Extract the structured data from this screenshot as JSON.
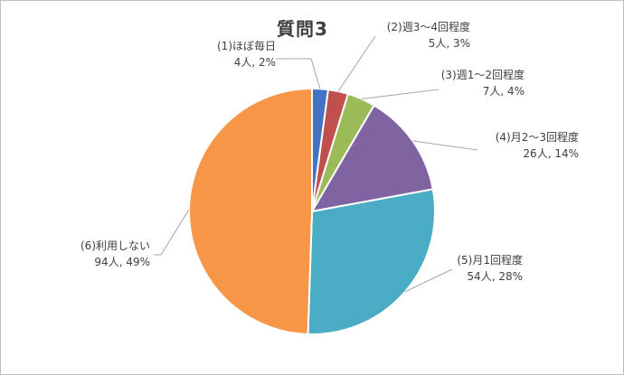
{
  "chart_data": {
    "type": "pie",
    "title": "質問3",
    "slices": [
      {
        "label": "(1)ほぼ毎日",
        "count": 4,
        "count_text": "4人",
        "percent": 2,
        "percent_text": "2%",
        "color": "#4472c4"
      },
      {
        "label": "(2)週3～4回程度",
        "count": 5,
        "count_text": "5人",
        "percent": 3,
        "percent_text": "3%",
        "color": "#c0504d"
      },
      {
        "label": "(3)週1～2回程度",
        "count": 7,
        "count_text": "7人",
        "percent": 4,
        "percent_text": "4%",
        "color": "#9bbb59"
      },
      {
        "label": "(4)月2～3回程度",
        "count": 26,
        "count_text": "26人",
        "percent": 14,
        "percent_text": "14%",
        "color": "#8064a2"
      },
      {
        "label": "(5)月1回程度",
        "count": 54,
        "count_text": "54人",
        "percent": 28,
        "percent_text": "28%",
        "color": "#4bacc6"
      },
      {
        "label": "(6)利用しない",
        "count": 94,
        "count_text": "94人",
        "percent": 49,
        "percent_text": "49%",
        "color": "#f79646"
      }
    ],
    "start_angle_deg": 0,
    "direction": "clockwise",
    "legend": "none"
  }
}
